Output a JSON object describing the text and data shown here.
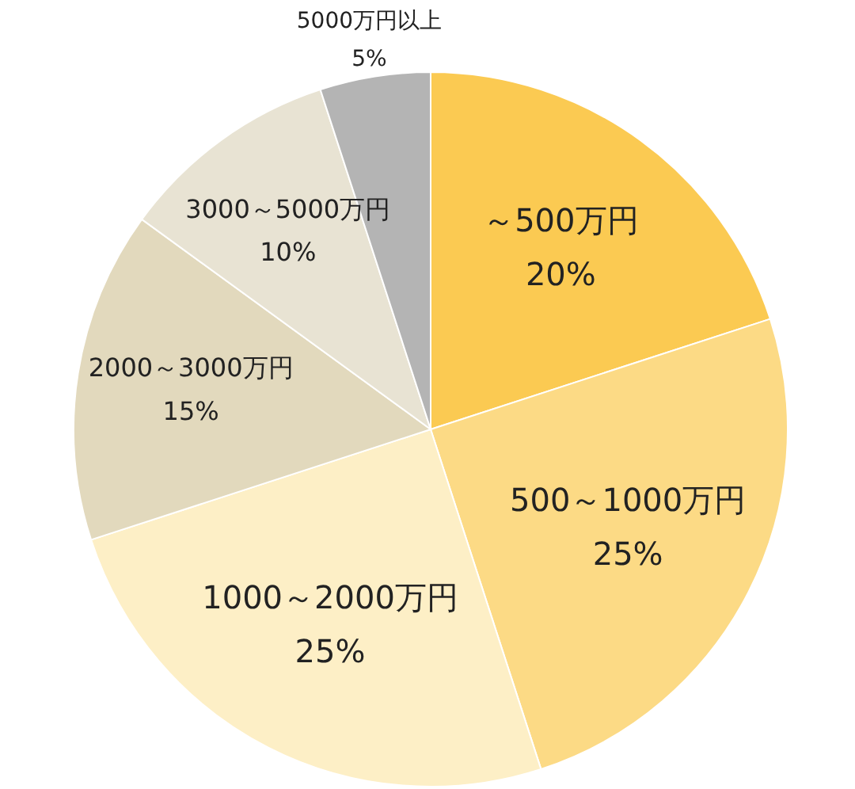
{
  "chart_data": {
    "type": "pie",
    "categories": [
      "～500万円",
      "500～1000万円",
      "1000～2000万円",
      "2000～3000万円",
      "3000～5000万円",
      "5000万円以上"
    ],
    "values": [
      20,
      25,
      25,
      15,
      10,
      5
    ],
    "value_labels": [
      "20%",
      "25%",
      "25%",
      "15%",
      "10%",
      "5%"
    ],
    "colors": [
      "#fbca52",
      "#fcda85",
      "#fdefc6",
      "#e2d9bd",
      "#e8e3d3",
      "#b4b4b4"
    ],
    "legend": false
  }
}
